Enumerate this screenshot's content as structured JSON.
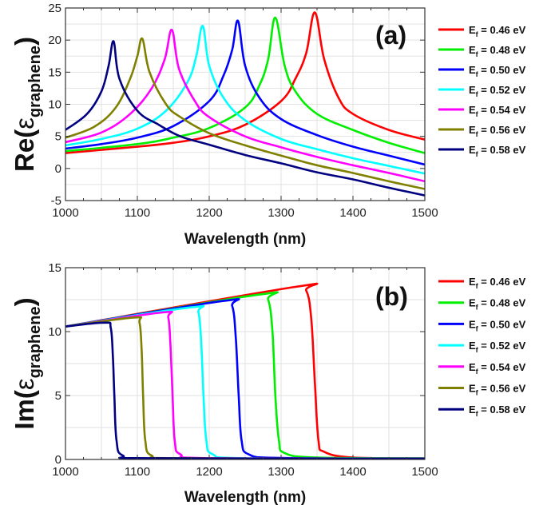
{
  "chart_data": [
    {
      "type": "line",
      "panel_label": "(a)",
      "xlabel": "Wavelength (nm)",
      "ylabel": {
        "main": "Re(",
        "symbol": "ε",
        "subscript": "graphene",
        "close": ")"
      },
      "xlim": [
        1000,
        1500
      ],
      "ylim": [
        -5,
        25
      ],
      "xticks": [
        1000,
        1100,
        1200,
        1300,
        1400,
        1500
      ],
      "yticks": [
        -5,
        0,
        5,
        10,
        15,
        20,
        25
      ],
      "grid": true,
      "legend_placement": "right",
      "series": [
        {
          "name": {
            "prefix": "E",
            "sub": "f",
            "rest": " = 0.46 eV"
          },
          "color": "#ff0000",
          "points": [
            [
              1000,
              2.4
            ],
            [
              1100,
              3.4
            ],
            [
              1150,
              4.0
            ],
            [
              1200,
              5.0
            ],
            [
              1250,
              6.8
            ],
            [
              1300,
              10.5
            ],
            [
              1320,
              14
            ],
            [
              1335,
              18
            ],
            [
              1347,
              24.3
            ],
            [
              1360,
              17
            ],
            [
              1380,
              11
            ],
            [
              1400,
              8.5
            ],
            [
              1450,
              6
            ],
            [
              1500,
              4.5
            ]
          ]
        },
        {
          "name": {
            "prefix": "E",
            "sub": "f",
            "rest": " = 0.48 eV"
          },
          "color": "#00ee00",
          "points": [
            [
              1000,
              2.7
            ],
            [
              1100,
              3.8
            ],
            [
              1150,
              4.8
            ],
            [
              1200,
              6.3
            ],
            [
              1250,
              9.5
            ],
            [
              1270,
              13
            ],
            [
              1282,
              17
            ],
            [
              1292,
              23.5
            ],
            [
              1305,
              16
            ],
            [
              1320,
              12
            ],
            [
              1350,
              8.5
            ],
            [
              1400,
              6
            ],
            [
              1450,
              4
            ],
            [
              1500,
              2.4
            ]
          ]
        },
        {
          "name": {
            "prefix": "E",
            "sub": "f",
            "rest": " = 0.50 eV"
          },
          "color": "#0000ff",
          "points": [
            [
              1000,
              3.1
            ],
            [
              1050,
              3.8
            ],
            [
              1100,
              4.8
            ],
            [
              1150,
              6.6
            ],
            [
              1200,
              10.5
            ],
            [
              1220,
              14.5
            ],
            [
              1232,
              18.5
            ],
            [
              1240,
              23
            ],
            [
              1250,
              16
            ],
            [
              1270,
              11
            ],
            [
              1300,
              7.7
            ],
            [
              1350,
              5.2
            ],
            [
              1400,
              3.4
            ],
            [
              1450,
              2
            ],
            [
              1500,
              0.6
            ]
          ]
        },
        {
          "name": {
            "prefix": "E",
            "sub": "f",
            "rest": " = 0.52 eV"
          },
          "color": "#00ffff",
          "points": [
            [
              1000,
              3.6
            ],
            [
              1050,
              4.6
            ],
            [
              1100,
              6.2
            ],
            [
              1140,
              9
            ],
            [
              1170,
              13.5
            ],
            [
              1182,
              17.5
            ],
            [
              1191,
              22.2
            ],
            [
              1200,
              16
            ],
            [
              1220,
              11
            ],
            [
              1250,
              7.5
            ],
            [
              1300,
              4.6
            ],
            [
              1350,
              3
            ],
            [
              1400,
              1.6
            ],
            [
              1450,
              0.4
            ],
            [
              1500,
              -0.8
            ]
          ]
        },
        {
          "name": {
            "prefix": "E",
            "sub": "f",
            "rest": " = 0.54 eV"
          },
          "color": "#ff00ff",
          "points": [
            [
              1000,
              4.1
            ],
            [
              1050,
              5.6
            ],
            [
              1090,
              8.5
            ],
            [
              1120,
              12.5
            ],
            [
              1138,
              17
            ],
            [
              1148,
              21.6
            ],
            [
              1158,
              15.5
            ],
            [
              1180,
              10.5
            ],
            [
              1200,
              8
            ],
            [
              1250,
              5
            ],
            [
              1300,
              3.3
            ],
            [
              1350,
              1.8
            ],
            [
              1400,
              0.5
            ],
            [
              1450,
              -0.7
            ],
            [
              1500,
              -2.0
            ]
          ]
        },
        {
          "name": {
            "prefix": "E",
            "sub": "f",
            "rest": " = 0.56 eV"
          },
          "color": "#808000",
          "points": [
            [
              1000,
              4.8
            ],
            [
              1040,
              6.5
            ],
            [
              1070,
              9.5
            ],
            [
              1090,
              14
            ],
            [
              1100,
              17.5
            ],
            [
              1107,
              20.2
            ],
            [
              1117,
              15
            ],
            [
              1140,
              10
            ],
            [
              1160,
              8
            ],
            [
              1200,
              5.5
            ],
            [
              1250,
              3.6
            ],
            [
              1300,
              2
            ],
            [
              1350,
              0.5
            ],
            [
              1400,
              -0.7
            ],
            [
              1450,
              -2
            ],
            [
              1500,
              -3.2
            ]
          ]
        },
        {
          "name": {
            "prefix": "E",
            "sub": "f",
            "rest": " = 0.58 eV"
          },
          "color": "#000080",
          "points": [
            [
              1000,
              6.0
            ],
            [
              1030,
              8.5
            ],
            [
              1050,
              12
            ],
            [
              1060,
              16
            ],
            [
              1067,
              19.8
            ],
            [
              1075,
              14
            ],
            [
              1100,
              9
            ],
            [
              1130,
              6.8
            ],
            [
              1160,
              5
            ],
            [
              1200,
              3.7
            ],
            [
              1250,
              2.1
            ],
            [
              1300,
              0.8
            ],
            [
              1350,
              -0.6
            ],
            [
              1400,
              -1.7
            ],
            [
              1450,
              -3
            ],
            [
              1500,
              -4.2
            ]
          ]
        }
      ]
    },
    {
      "type": "line",
      "panel_label": "(b)",
      "xlabel": "Wavelength (nm)",
      "ylabel": {
        "main": "Im(",
        "symbol": "ε",
        "subscript": "graphene",
        "close": ")"
      },
      "xlim": [
        1000,
        1500
      ],
      "ylim": [
        0,
        15
      ],
      "xticks": [
        1000,
        1100,
        1200,
        1300,
        1400,
        1500
      ],
      "yticks": [
        0,
        5,
        10,
        15
      ],
      "grid": true,
      "legend_placement": "right",
      "series": [
        {
          "name": {
            "prefix": "E",
            "sub": "f",
            "rest": " = 0.46 eV"
          },
          "color": "#ff0000",
          "points": [
            [
              1000,
              10.4
            ],
            [
              1320,
              13.5
            ],
            [
              1335,
              13.2
            ],
            [
              1342,
              11
            ],
            [
              1347,
              6
            ],
            [
              1352,
              1.5
            ],
            [
              1360,
              0.6
            ],
            [
              1400,
              0.15
            ],
            [
              1500,
              0.1
            ]
          ]
        },
        {
          "name": {
            "prefix": "E",
            "sub": "f",
            "rest": " = 0.48 eV"
          },
          "color": "#00ee00",
          "points": [
            [
              1000,
              10.4
            ],
            [
              1270,
              12.9
            ],
            [
              1282,
              12.5
            ],
            [
              1288,
              10
            ],
            [
              1292,
              5
            ],
            [
              1297,
              1.5
            ],
            [
              1305,
              0.5
            ],
            [
              1350,
              0.15
            ],
            [
              1500,
              0.1
            ]
          ]
        },
        {
          "name": {
            "prefix": "E",
            "sub": "f",
            "rest": " = 0.50 eV"
          },
          "color": "#0000ff",
          "points": [
            [
              1000,
              10.4
            ],
            [
              1220,
              12.4
            ],
            [
              1232,
              12.0
            ],
            [
              1237,
              9.5
            ],
            [
              1241,
              5
            ],
            [
              1245,
              1.5
            ],
            [
              1255,
              0.4
            ],
            [
              1300,
              0.12
            ],
            [
              1500,
              0.08
            ]
          ]
        },
        {
          "name": {
            "prefix": "E",
            "sub": "f",
            "rest": " = 0.52 eV"
          },
          "color": "#00ffff",
          "points": [
            [
              1000,
              10.4
            ],
            [
              1175,
              11.9
            ],
            [
              1185,
              11.5
            ],
            [
              1189,
              9
            ],
            [
              1192,
              5
            ],
            [
              1196,
              1.5
            ],
            [
              1205,
              0.4
            ],
            [
              1250,
              0.1
            ],
            [
              1500,
              0.07
            ]
          ]
        },
        {
          "name": {
            "prefix": "E",
            "sub": "f",
            "rest": " = 0.54 eV"
          },
          "color": "#ff00ff",
          "points": [
            [
              1000,
              10.4
            ],
            [
              1135,
              11.5
            ],
            [
              1143,
              11.1
            ],
            [
              1146,
              9
            ],
            [
              1149,
              5
            ],
            [
              1152,
              1.5
            ],
            [
              1160,
              0.4
            ],
            [
              1200,
              0.1
            ],
            [
              1500,
              0.06
            ]
          ]
        },
        {
          "name": {
            "prefix": "E",
            "sub": "f",
            "rest": " = 0.56 eV"
          },
          "color": "#808000",
          "points": [
            [
              1000,
              10.4
            ],
            [
              1095,
              11.1
            ],
            [
              1103,
              10.7
            ],
            [
              1106,
              8.5
            ],
            [
              1108,
              5
            ],
            [
              1111,
              1.5
            ],
            [
              1120,
              0.3
            ],
            [
              1160,
              0.1
            ],
            [
              1500,
              0.05
            ]
          ]
        },
        {
          "name": {
            "prefix": "E",
            "sub": "f",
            "rest": " = 0.58 eV"
          },
          "color": "#000080",
          "points": [
            [
              1000,
              10.4
            ],
            [
              1055,
              10.7
            ],
            [
              1063,
              10.3
            ],
            [
              1066,
              8
            ],
            [
              1068,
              5
            ],
            [
              1071,
              1.5
            ],
            [
              1080,
              0.3
            ],
            [
              1120,
              0.1
            ],
            [
              1500,
              0.05
            ]
          ]
        }
      ]
    }
  ]
}
